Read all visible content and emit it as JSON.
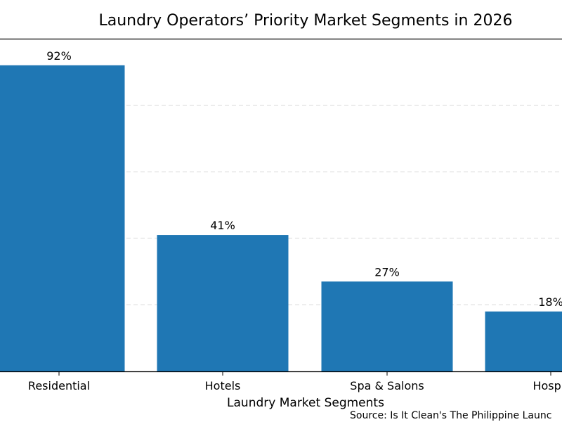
{
  "chart_data": {
    "type": "bar",
    "title": "Laundry Operators’ Priority Market Segments in 2026",
    "xlabel": "Laundry Market Segments",
    "ylabel": "",
    "categories": [
      "Residential",
      "Hotels",
      "Spa & Salons",
      "Hospit"
    ],
    "values": [
      92,
      41,
      27,
      18
    ],
    "data_labels": [
      "92%",
      "41%",
      "27%",
      "18%"
    ],
    "ylim": [
      0,
      100
    ],
    "grid": true,
    "bar_color": "#1f77b4",
    "source": "Source: Is It Clean's The Philippine Launc"
  }
}
